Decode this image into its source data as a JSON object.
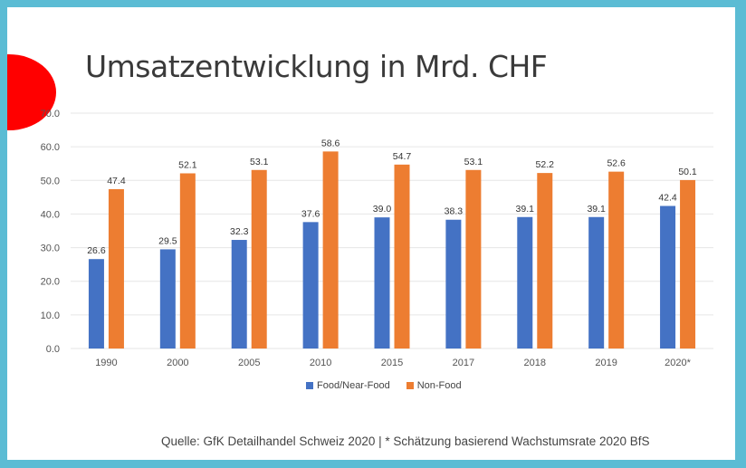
{
  "title": "Umsatzentwicklung in Mrd. CHF",
  "source": "Quelle: GfK Detailhandel Schweiz 2020 | * Schätzung basierend Wachstumsrate 2020 BfS",
  "colors": {
    "food": "#4472c4",
    "nonfood": "#ed7d31",
    "grid": "#e6e6e6",
    "axis_text": "#555555",
    "label_text": "#333333"
  },
  "chart_data": {
    "type": "bar",
    "categories": [
      "1990",
      "2000",
      "2005",
      "2010",
      "2015",
      "2017",
      "2018",
      "2019",
      "2020*"
    ],
    "series": [
      {
        "name": "Food/Near-Food",
        "values": [
          26.6,
          29.5,
          32.3,
          37.6,
          39.0,
          38.3,
          39.1,
          39.1,
          42.4
        ]
      },
      {
        "name": "Non-Food",
        "values": [
          47.4,
          52.1,
          53.1,
          58.6,
          54.7,
          53.1,
          52.2,
          52.6,
          50.1
        ]
      }
    ],
    "yticks": [
      "0.0",
      "10.0",
      "20.0",
      "30.0",
      "40.0",
      "50.0",
      "60.0",
      "70.0"
    ],
    "ylim": [
      0,
      70
    ],
    "grid": true,
    "legend_position": "bottom",
    "data_labels": true
  }
}
